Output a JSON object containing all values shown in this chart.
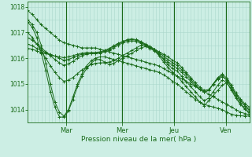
{
  "title": "",
  "xlabel": "Pression niveau de la mer( hPa )",
  "ylabel": "",
  "bg_color": "#cceee4",
  "plot_bg_color": "#cceee4",
  "grid_color": "#aad8cc",
  "line_color": "#1a6b1a",
  "marker_color": "#1a6b1a",
  "ylim": [
    1013.5,
    1018.2
  ],
  "yticks": [
    1014,
    1015,
    1016,
    1017,
    1018
  ],
  "day_positions": [
    0.175,
    0.425,
    0.66,
    0.895
  ],
  "day_labels": [
    "Mar",
    "Mer",
    "Jeu",
    "Ven"
  ],
  "series": [
    [
      1017.85,
      1017.7,
      1017.5,
      1017.3,
      1017.15,
      1017.0,
      1016.85,
      1016.7,
      1016.6,
      1016.55,
      1016.5,
      1016.45,
      1016.4,
      1016.4,
      1016.4,
      1016.4,
      1016.35,
      1016.3,
      1016.25,
      1016.2,
      1016.15,
      1016.1,
      1016.05,
      1016.0,
      1015.95,
      1015.9,
      1015.85,
      1015.8,
      1015.75,
      1015.7,
      1015.6,
      1015.5,
      1015.4,
      1015.3,
      1015.2,
      1015.1,
      1015.0,
      1014.9,
      1014.8,
      1014.7,
      1014.6,
      1014.5,
      1014.4,
      1014.3,
      1014.2,
      1014.1,
      1014.0,
      1013.9,
      1013.85,
      1013.8
    ],
    [
      1017.5,
      1017.3,
      1017.0,
      1016.5,
      1015.8,
      1015.0,
      1014.3,
      1013.9,
      1013.75,
      1014.0,
      1014.5,
      1015.0,
      1015.4,
      1015.7,
      1015.9,
      1016.0,
      1016.05,
      1016.05,
      1016.0,
      1015.95,
      1015.9,
      1015.85,
      1015.8,
      1015.75,
      1015.7,
      1015.65,
      1015.6,
      1015.55,
      1015.5,
      1015.45,
      1015.35,
      1015.25,
      1015.1,
      1015.0,
      1014.85,
      1014.7,
      1014.55,
      1014.4,
      1014.3,
      1014.2,
      1014.15,
      1014.1,
      1014.05,
      1014.0,
      1013.9,
      1013.82,
      1013.78,
      1013.76,
      1013.75,
      1013.75
    ],
    [
      1017.4,
      1017.2,
      1016.8,
      1016.2,
      1015.5,
      1014.7,
      1014.1,
      1013.72,
      1013.7,
      1013.95,
      1014.4,
      1014.9,
      1015.3,
      1015.6,
      1015.8,
      1015.95,
      1015.95,
      1015.85,
      1015.75,
      1015.8,
      1015.9,
      1016.0,
      1016.1,
      1016.2,
      1016.3,
      1016.4,
      1016.45,
      1016.4,
      1016.3,
      1016.1,
      1015.85,
      1015.65,
      1015.45,
      1015.3,
      1015.1,
      1014.9,
      1014.7,
      1014.5,
      1014.3,
      1014.15,
      1014.35,
      1014.55,
      1014.75,
      1014.95,
      1015.05,
      1014.8,
      1014.5,
      1014.25,
      1014.05,
      1013.82
    ],
    [
      1017.0,
      1016.8,
      1016.55,
      1016.25,
      1016.0,
      1015.7,
      1015.45,
      1015.25,
      1015.1,
      1015.15,
      1015.25,
      1015.4,
      1015.55,
      1015.65,
      1015.75,
      1015.8,
      1015.82,
      1015.82,
      1015.85,
      1015.9,
      1016.0,
      1016.1,
      1016.2,
      1016.3,
      1016.4,
      1016.5,
      1016.52,
      1016.45,
      1016.35,
      1016.15,
      1015.95,
      1015.75,
      1015.6,
      1015.5,
      1015.3,
      1015.1,
      1014.9,
      1014.7,
      1014.5,
      1014.35,
      1014.45,
      1014.7,
      1014.95,
      1015.15,
      1015.05,
      1014.75,
      1014.45,
      1014.2,
      1014.02,
      1013.9
    ],
    [
      1016.8,
      1016.7,
      1016.55,
      1016.4,
      1016.25,
      1016.1,
      1015.95,
      1015.82,
      1015.72,
      1015.78,
      1015.88,
      1016.0,
      1016.1,
      1016.15,
      1016.18,
      1016.18,
      1016.2,
      1016.25,
      1016.3,
      1016.4,
      1016.5,
      1016.6,
      1016.65,
      1016.68,
      1016.65,
      1016.58,
      1016.48,
      1016.38,
      1016.28,
      1016.15,
      1016.0,
      1015.85,
      1015.72,
      1015.62,
      1015.45,
      1015.28,
      1015.1,
      1014.92,
      1014.78,
      1014.68,
      1014.75,
      1015.0,
      1015.25,
      1015.38,
      1015.22,
      1014.95,
      1014.65,
      1014.42,
      1014.22,
      1014.1
    ],
    [
      1016.55,
      1016.48,
      1016.38,
      1016.3,
      1016.22,
      1016.15,
      1016.08,
      1016.0,
      1015.92,
      1015.95,
      1016.02,
      1016.1,
      1016.15,
      1016.18,
      1016.18,
      1016.2,
      1016.22,
      1016.28,
      1016.35,
      1016.45,
      1016.55,
      1016.65,
      1016.72,
      1016.75,
      1016.72,
      1016.65,
      1016.55,
      1016.45,
      1016.35,
      1016.22,
      1016.08,
      1015.95,
      1015.82,
      1015.72,
      1015.55,
      1015.38,
      1015.18,
      1014.98,
      1014.8,
      1014.68,
      1014.75,
      1015.0,
      1015.22,
      1015.32,
      1015.15,
      1014.88,
      1014.58,
      1014.35,
      1014.15,
      1014.02
    ],
    [
      1016.38,
      1016.35,
      1016.28,
      1016.22,
      1016.18,
      1016.12,
      1016.08,
      1016.05,
      1016.02,
      1016.05,
      1016.1,
      1016.15,
      1016.2,
      1016.22,
      1016.22,
      1016.22,
      1016.25,
      1016.3,
      1016.38,
      1016.48,
      1016.58,
      1016.65,
      1016.7,
      1016.72,
      1016.7,
      1016.62,
      1016.52,
      1016.42,
      1016.35,
      1016.25,
      1016.15,
      1016.05,
      1015.92,
      1015.82,
      1015.65,
      1015.45,
      1015.25,
      1015.05,
      1014.88,
      1014.75,
      1014.78,
      1014.98,
      1015.18,
      1015.28,
      1015.15,
      1014.88,
      1014.58,
      1014.35,
      1014.15,
      1013.95
    ]
  ]
}
